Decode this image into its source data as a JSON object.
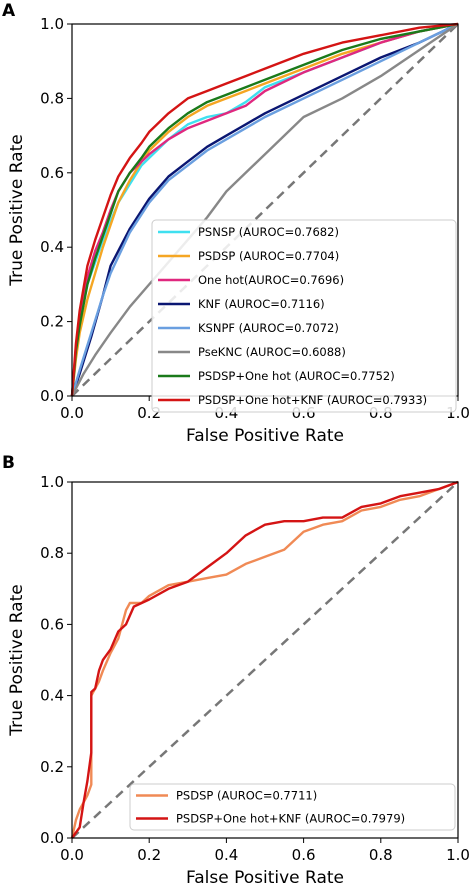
{
  "chart_data": [
    {
      "panel": "A",
      "type": "line",
      "xlabel": "False Positive Rate",
      "ylabel": "True Positive Rate",
      "xlim": [
        0,
        1
      ],
      "ylim": [
        0,
        1
      ],
      "xticks": [
        "0.0",
        "0.2",
        "0.4",
        "0.6",
        "0.8",
        "1.0"
      ],
      "yticks": [
        "0.0",
        "0.2",
        "0.4",
        "0.6",
        "0.8",
        "1.0"
      ],
      "legend_position": "lower-right",
      "diagonal": true,
      "series": [
        {
          "name": "PSNSP",
          "auroc": "(AUROC=0.7682)",
          "color": "#3fe0f0",
          "x": [
            0,
            0.01,
            0.02,
            0.04,
            0.06,
            0.08,
            0.1,
            0.12,
            0.15,
            0.18,
            0.2,
            0.25,
            0.3,
            0.35,
            0.4,
            0.45,
            0.5,
            0.6,
            0.7,
            0.8,
            0.9,
            1
          ],
          "y": [
            0,
            0.12,
            0.2,
            0.3,
            0.36,
            0.42,
            0.47,
            0.52,
            0.57,
            0.62,
            0.64,
            0.69,
            0.73,
            0.75,
            0.76,
            0.79,
            0.83,
            0.87,
            0.91,
            0.95,
            0.98,
            1
          ]
        },
        {
          "name": "PSDSP",
          "auroc": "(AUROC=0.7704)",
          "color": "#f5a623",
          "x": [
            0,
            0.01,
            0.02,
            0.04,
            0.06,
            0.08,
            0.1,
            0.12,
            0.15,
            0.18,
            0.2,
            0.25,
            0.3,
            0.35,
            0.4,
            0.45,
            0.5,
            0.6,
            0.7,
            0.8,
            0.9,
            1
          ],
          "y": [
            0,
            0.1,
            0.17,
            0.26,
            0.33,
            0.4,
            0.46,
            0.52,
            0.58,
            0.63,
            0.66,
            0.71,
            0.75,
            0.78,
            0.8,
            0.82,
            0.84,
            0.88,
            0.92,
            0.95,
            0.98,
            1
          ]
        },
        {
          "name": "One hot(AUROC=0.7696)",
          "auroc": "",
          "color": "#e0287f",
          "x": [
            0,
            0.01,
            0.02,
            0.04,
            0.06,
            0.08,
            0.1,
            0.12,
            0.15,
            0.18,
            0.2,
            0.25,
            0.3,
            0.35,
            0.4,
            0.45,
            0.5,
            0.6,
            0.7,
            0.8,
            0.9,
            1
          ],
          "y": [
            0,
            0.13,
            0.21,
            0.32,
            0.39,
            0.44,
            0.5,
            0.55,
            0.6,
            0.63,
            0.65,
            0.69,
            0.72,
            0.74,
            0.76,
            0.78,
            0.82,
            0.87,
            0.91,
            0.95,
            0.98,
            1
          ]
        },
        {
          "name": "KNF",
          "auroc": "(AUROC=0.7116)",
          "color": "#0a1672",
          "x": [
            0,
            0.02,
            0.05,
            0.08,
            0.1,
            0.15,
            0.2,
            0.25,
            0.3,
            0.35,
            0.4,
            0.45,
            0.5,
            0.6,
            0.7,
            0.8,
            0.9,
            1
          ],
          "y": [
            0,
            0.06,
            0.16,
            0.27,
            0.35,
            0.45,
            0.53,
            0.59,
            0.63,
            0.67,
            0.7,
            0.73,
            0.76,
            0.81,
            0.86,
            0.91,
            0.95,
            1
          ]
        },
        {
          "name": "KSNPF",
          "auroc": "(AUROC=0.7072)",
          "color": "#6a9fe0",
          "x": [
            0,
            0.02,
            0.05,
            0.08,
            0.1,
            0.15,
            0.2,
            0.25,
            0.3,
            0.35,
            0.4,
            0.45,
            0.5,
            0.6,
            0.7,
            0.8,
            0.9,
            1
          ],
          "y": [
            0,
            0.07,
            0.17,
            0.27,
            0.33,
            0.44,
            0.52,
            0.58,
            0.62,
            0.66,
            0.69,
            0.72,
            0.75,
            0.8,
            0.85,
            0.9,
            0.95,
            1
          ]
        },
        {
          "name": "PseKNC",
          "auroc": "(AUROC=0.6088)",
          "color": "#888888",
          "x": [
            0,
            0.03,
            0.06,
            0.1,
            0.15,
            0.2,
            0.25,
            0.3,
            0.35,
            0.4,
            0.45,
            0.5,
            0.55,
            0.6,
            0.7,
            0.8,
            0.9,
            1
          ],
          "y": [
            0,
            0.06,
            0.11,
            0.17,
            0.24,
            0.3,
            0.36,
            0.42,
            0.48,
            0.55,
            0.6,
            0.65,
            0.7,
            0.75,
            0.8,
            0.86,
            0.93,
            1
          ]
        },
        {
          "name": "PSDSP+One hot",
          "auroc": "(AUROC=0.7752)",
          "color": "#1a7a1a",
          "x": [
            0,
            0.01,
            0.02,
            0.04,
            0.06,
            0.08,
            0.1,
            0.12,
            0.15,
            0.18,
            0.2,
            0.25,
            0.3,
            0.35,
            0.4,
            0.45,
            0.5,
            0.6,
            0.7,
            0.8,
            0.9,
            1
          ],
          "y": [
            0,
            0.12,
            0.19,
            0.3,
            0.37,
            0.43,
            0.49,
            0.55,
            0.6,
            0.64,
            0.67,
            0.72,
            0.76,
            0.79,
            0.81,
            0.83,
            0.85,
            0.89,
            0.93,
            0.96,
            0.98,
            1
          ]
        },
        {
          "name": "PSDSP+One hot+KNF",
          "auroc": "(AUROC=0.7933)",
          "color": "#d41414",
          "x": [
            0,
            0.01,
            0.02,
            0.04,
            0.06,
            0.08,
            0.1,
            0.12,
            0.15,
            0.18,
            0.2,
            0.25,
            0.3,
            0.35,
            0.4,
            0.45,
            0.5,
            0.6,
            0.7,
            0.8,
            0.9,
            1
          ],
          "y": [
            0,
            0.14,
            0.23,
            0.35,
            0.42,
            0.48,
            0.54,
            0.59,
            0.64,
            0.68,
            0.71,
            0.76,
            0.8,
            0.82,
            0.84,
            0.86,
            0.88,
            0.92,
            0.95,
            0.97,
            0.99,
            1
          ]
        }
      ]
    },
    {
      "panel": "B",
      "type": "line",
      "xlabel": "False Positive Rate",
      "ylabel": "True Positive Rate",
      "xlim": [
        0,
        1
      ],
      "ylim": [
        0,
        1
      ],
      "xticks": [
        "0.0",
        "0.2",
        "0.4",
        "0.6",
        "0.8",
        "1.0"
      ],
      "yticks": [
        "0.0",
        "0.2",
        "0.4",
        "0.6",
        "0.8",
        "1.0"
      ],
      "legend_position": "lower-right",
      "diagonal": true,
      "series": [
        {
          "name": "PSDSP",
          "auroc": "(AUROC=0.7711)",
          "color": "#f08a55",
          "x": [
            0,
            0.01,
            0.02,
            0.03,
            0.04,
            0.05,
            0.05,
            0.06,
            0.07,
            0.08,
            0.1,
            0.12,
            0.14,
            0.15,
            0.18,
            0.2,
            0.25,
            0.3,
            0.35,
            0.4,
            0.45,
            0.5,
            0.55,
            0.6,
            0.65,
            0.7,
            0.75,
            0.8,
            0.85,
            0.9,
            0.95,
            1
          ],
          "y": [
            0,
            0.05,
            0.08,
            0.1,
            0.12,
            0.15,
            0.4,
            0.42,
            0.44,
            0.47,
            0.52,
            0.56,
            0.64,
            0.66,
            0.66,
            0.68,
            0.71,
            0.72,
            0.73,
            0.74,
            0.77,
            0.79,
            0.81,
            0.86,
            0.88,
            0.89,
            0.92,
            0.93,
            0.95,
            0.96,
            0.98,
            1
          ]
        },
        {
          "name": "PSDSP+One hot+KNF",
          "auroc": "(AUROC=0.7979)",
          "color": "#d41414",
          "x": [
            0,
            0.02,
            0.03,
            0.04,
            0.05,
            0.05,
            0.06,
            0.07,
            0.08,
            0.1,
            0.12,
            0.14,
            0.16,
            0.2,
            0.25,
            0.3,
            0.35,
            0.4,
            0.45,
            0.5,
            0.55,
            0.6,
            0.65,
            0.7,
            0.75,
            0.8,
            0.85,
            0.9,
            0.95,
            1
          ],
          "y": [
            0,
            0.03,
            0.1,
            0.16,
            0.24,
            0.41,
            0.42,
            0.47,
            0.5,
            0.53,
            0.58,
            0.6,
            0.65,
            0.67,
            0.7,
            0.72,
            0.76,
            0.8,
            0.85,
            0.88,
            0.89,
            0.89,
            0.9,
            0.9,
            0.93,
            0.94,
            0.96,
            0.97,
            0.98,
            1
          ]
        }
      ]
    }
  ]
}
